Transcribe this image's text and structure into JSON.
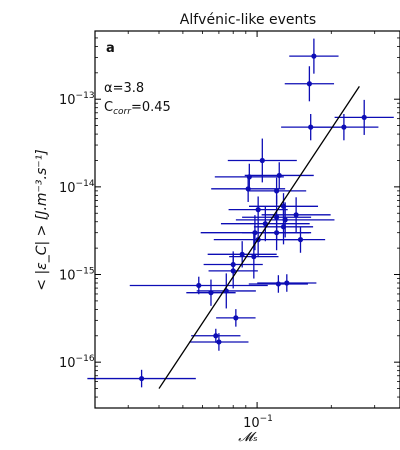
{
  "chart_data": {
    "type": "scatter",
    "title": "Alfvénic-like events",
    "panel_label": "a",
    "annotations": [
      {
        "text": "α=3.8"
      },
      {
        "text_main": "C",
        "text_sub": "corr",
        "text_tail": "=0.45"
      }
    ],
    "xlabel": "𝓜ₛ",
    "ylabel": "< |ε_C| > [J.m⁻³.s⁻¹]",
    "xscale": "log",
    "yscale": "log",
    "xlim": [
      0.022,
      0.38
    ],
    "ylim": [
      3e-17,
      6e-13
    ],
    "xticks": [
      {
        "value": 0.1,
        "label": "10",
        "exp": "−1"
      }
    ],
    "yticks": [
      {
        "value": 1e-16,
        "label": "10",
        "exp": "−16"
      },
      {
        "value": 1e-15,
        "label": "10",
        "exp": "−15"
      },
      {
        "value": 1e-14,
        "label": "10",
        "exp": "−14"
      },
      {
        "value": 1e-13,
        "label": "10",
        "exp": "−13"
      }
    ],
    "grid": false,
    "marker_color": "#0d0db5",
    "fit_color": "#000000",
    "fit_line": {
      "x": [
        0.04,
        0.26
      ],
      "y": [
        5e-17,
        1.4e-13
      ]
    },
    "points": [
      {
        "x": 0.034,
        "y": 6.5e-17,
        "xerr": 0.22,
        "yerr": 0.1
      },
      {
        "x": 0.07,
        "y": 1.7e-16,
        "xerr": 0.12,
        "yerr": 0.1
      },
      {
        "x": 0.068,
        "y": 2e-16,
        "xerr": 0.1,
        "yerr": 0.08
      },
      {
        "x": 0.082,
        "y": 3.2e-16,
        "xerr": 0.08,
        "yerr": 0.1
      },
      {
        "x": 0.075,
        "y": 6.5e-16,
        "xerr": 0.12,
        "yerr": 0.2
      },
      {
        "x": 0.065,
        "y": 6.2e-16,
        "xerr": 0.1,
        "yerr": 0.15
      },
      {
        "x": 0.058,
        "y": 7.5e-16,
        "xerr": 0.28,
        "yerr": 0.1
      },
      {
        "x": 0.08,
        "y": 1.1e-15,
        "xerr": 0.1,
        "yerr": 0.2
      },
      {
        "x": 0.08,
        "y": 1.3e-15,
        "xerr": 0.12,
        "yerr": 0.15
      },
      {
        "x": 0.097,
        "y": 1.6e-15,
        "xerr": 0.1,
        "yerr": 0.25
      },
      {
        "x": 0.087,
        "y": 1.7e-15,
        "xerr": 0.14,
        "yerr": 0.15
      },
      {
        "x": 0.101,
        "y": 2.5e-15,
        "xerr": 0.18,
        "yerr": 0.2
      },
      {
        "x": 0.098,
        "y": 3e-15,
        "xerr": 0.22,
        "yerr": 0.2
      },
      {
        "x": 0.12,
        "y": 3e-15,
        "xerr": 0.14,
        "yerr": 0.2
      },
      {
        "x": 0.128,
        "y": 3.5e-15,
        "xerr": 0.12,
        "yerr": 0.2
      },
      {
        "x": 0.108,
        "y": 3.8e-15,
        "xerr": 0.18,
        "yerr": 0.2
      },
      {
        "x": 0.13,
        "y": 4.2e-15,
        "xerr": 0.2,
        "yerr": 0.2
      },
      {
        "x": 0.12,
        "y": 4.5e-15,
        "xerr": 0.14,
        "yerr": 0.25
      },
      {
        "x": 0.144,
        "y": 4.8e-15,
        "xerr": 0.14,
        "yerr": 0.2
      },
      {
        "x": 0.101,
        "y": 5.5e-15,
        "xerr": 0.12,
        "yerr": 0.15
      },
      {
        "x": 0.128,
        "y": 6e-15,
        "xerr": 0.14,
        "yerr": 0.15
      },
      {
        "x": 0.15,
        "y": 2.5e-15,
        "xerr": 0.1,
        "yerr": 0.15
      },
      {
        "x": 0.132,
        "y": 8e-16,
        "xerr": 0.12,
        "yerr": 0.1
      },
      {
        "x": 0.122,
        "y": 7.8e-16,
        "xerr": 0.12,
        "yerr": 0.1
      },
      {
        "x": 0.092,
        "y": 9.5e-15,
        "xerr": 0.15,
        "yerr": 0.15
      },
      {
        "x": 0.12,
        "y": 9e-15,
        "xerr": 0.12,
        "yerr": 0.15
      },
      {
        "x": 0.093,
        "y": 1.3e-14,
        "xerr": 0.14,
        "yerr": 0.15
      },
      {
        "x": 0.123,
        "y": 1.35e-14,
        "xerr": 0.14,
        "yerr": 0.15
      },
      {
        "x": 0.105,
        "y": 2e-14,
        "xerr": 0.14,
        "yerr": 0.25
      },
      {
        "x": 0.165,
        "y": 4.8e-14,
        "xerr": 0.12,
        "yerr": 0.15
      },
      {
        "x": 0.225,
        "y": 4.8e-14,
        "xerr": 0.14,
        "yerr": 0.15
      },
      {
        "x": 0.272,
        "y": 6.2e-14,
        "xerr": 0.12,
        "yerr": 0.2
      },
      {
        "x": 0.163,
        "y": 1.5e-13,
        "xerr": 0.1,
        "yerr": 0.2
      },
      {
        "x": 0.17,
        "y": 3.1e-13,
        "xerr": 0.1,
        "yerr": 0.2
      }
    ]
  }
}
